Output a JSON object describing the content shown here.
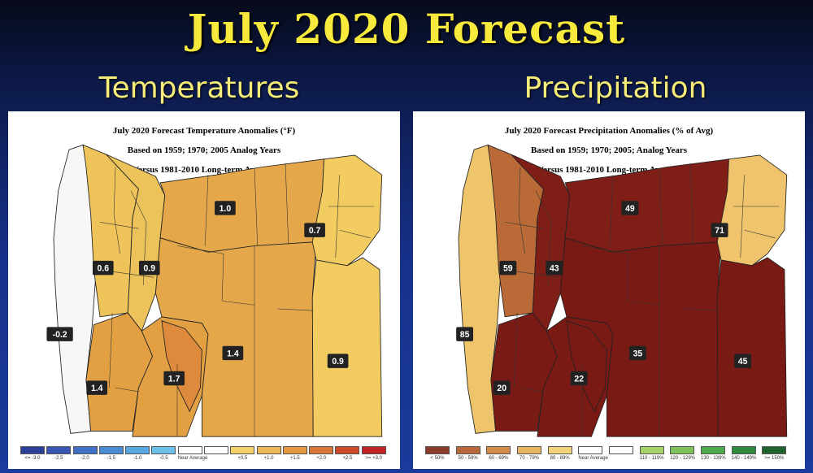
{
  "title": "July 2020 Forecast",
  "panels": [
    {
      "heading": "Temperatures",
      "map_title": [
        "July 2020 Forecast Temperature Anomalies (°F)",
        "Based on 1959; 1970; 2005 Analog Years",
        "Versus 1981-2010 Long-term Average"
      ],
      "regions": [
        {
          "id": "coast",
          "color": "#f7f7f7",
          "value": "-0.2"
        },
        {
          "id": "nw_valley",
          "color": "#eec35a",
          "value": "0.6"
        },
        {
          "id": "willamette",
          "color": "#ecc25a",
          "value": "0.9"
        },
        {
          "id": "sw_interior",
          "color": "#e2a043",
          "value": "1.4"
        },
        {
          "id": "central_south",
          "color": "#e2a043",
          "value": "1.7"
        },
        {
          "id": "klamath",
          "color": "#de8a3c",
          "value": ""
        },
        {
          "id": "north_central",
          "color": "#e4a84a",
          "value": "1.0"
        },
        {
          "id": "central_desert",
          "color": "#e4a84a",
          "value": "1.4"
        },
        {
          "id": "ne",
          "color": "#f2cc60",
          "value": "0.7"
        },
        {
          "id": "se",
          "color": "#f2cc60",
          "value": "0.9"
        }
      ],
      "legend": [
        {
          "label": "<= -3.0",
          "color": "#2e3f9a"
        },
        {
          "label": "-2.5",
          "color": "#3757b3"
        },
        {
          "label": "-2.0",
          "color": "#3f70c6"
        },
        {
          "label": "-1.5",
          "color": "#4a8bd6"
        },
        {
          "label": "-1.0",
          "color": "#59a6e0"
        },
        {
          "label": "-0.5",
          "color": "#6cc0ea"
        },
        {
          "label": "Near Average",
          "color": "#ffffff"
        },
        {
          "label": "",
          "color": "#ffffff"
        },
        {
          "label": "+0.5",
          "color": "#f3d26b"
        },
        {
          "label": "+1.0",
          "color": "#ecb754"
        },
        {
          "label": "+1.5",
          "color": "#e39a43"
        },
        {
          "label": "+2.0",
          "color": "#d87838"
        },
        {
          "label": "+2.5",
          "color": "#cc4a2c"
        },
        {
          "label": ">= +3.0",
          "color": "#c22226"
        }
      ]
    },
    {
      "heading": "Precipitation",
      "map_title": [
        "July 2020 Forecast Precipitation Anomalies (% of Avg)",
        "Based on 1959; 1970; 2005; Analog Years",
        "Versus 1981-2010 Long-term Average"
      ],
      "regions": [
        {
          "id": "coast",
          "color": "#eec56a",
          "value": "85"
        },
        {
          "id": "nw_valley",
          "color": "#b96a36",
          "value": "59"
        },
        {
          "id": "willamette",
          "color": "#7f1e17",
          "value": "43"
        },
        {
          "id": "sw_interior",
          "color": "#7a1a14",
          "value": "20"
        },
        {
          "id": "central_south",
          "color": "#7a1a14",
          "value": "22"
        },
        {
          "id": "klamath",
          "color": "#7a1a14",
          "value": ""
        },
        {
          "id": "north_central",
          "color": "#7f1e17",
          "value": "49"
        },
        {
          "id": "central_desert",
          "color": "#7a1a14",
          "value": "35"
        },
        {
          "id": "ne",
          "color": "#efc46c",
          "value": "71"
        },
        {
          "id": "se",
          "color": "#7a1a14",
          "value": "45"
        }
      ],
      "legend": [
        {
          "label": "< 50%",
          "color": "#8a3a2a"
        },
        {
          "label": "50 - 59%",
          "color": "#b8683a"
        },
        {
          "label": "60 - 69%",
          "color": "#d18b4d"
        },
        {
          "label": "70 - 79%",
          "color": "#e8b45f"
        },
        {
          "label": "80 - 89%",
          "color": "#f2d27a"
        },
        {
          "label": "Near Average",
          "color": "#ffffff"
        },
        {
          "label": "",
          "color": "#ffffff"
        },
        {
          "label": "110 - 119%",
          "color": "#a7d26b"
        },
        {
          "label": "120 - 129%",
          "color": "#7dc15a"
        },
        {
          "label": "130 - 139%",
          "color": "#4fa84b"
        },
        {
          "label": "140 - 149%",
          "color": "#2f8a3f"
        },
        {
          "label": ">= 150%",
          "color": "#20622e"
        }
      ]
    }
  ]
}
